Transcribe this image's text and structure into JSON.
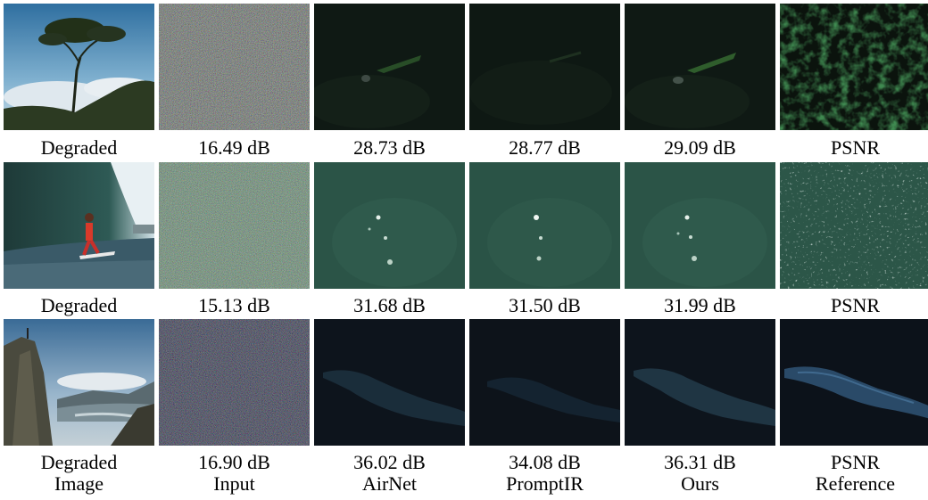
{
  "rows": [
    {
      "captions": [
        "Degraded",
        "16.49 dB",
        "28.73 dB",
        "28.77 dB",
        "29.09 dB",
        "PSNR"
      ]
    },
    {
      "captions": [
        "Degraded",
        "15.13 dB",
        "31.68 dB",
        "31.50 dB",
        "31.99 dB",
        "PSNR"
      ]
    },
    {
      "captions": [
        "Degraded",
        "16.90 dB",
        "36.02 dB",
        "34.08 dB",
        "36.31 dB",
        "PSNR"
      ]
    }
  ],
  "column_labels": [
    "Image",
    "Input",
    "AirNet",
    "PromptIR",
    "Ours",
    "Reference"
  ]
}
